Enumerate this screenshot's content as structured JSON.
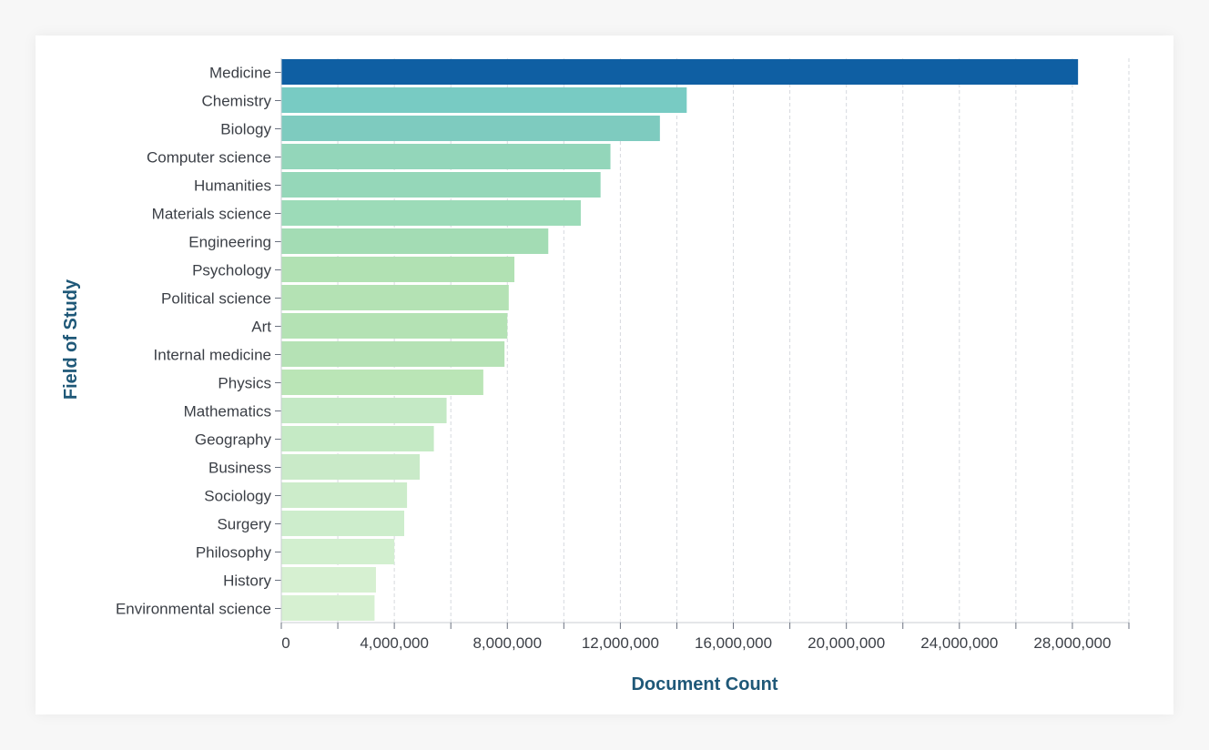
{
  "chart_data": {
    "type": "bar",
    "orientation": "horizontal",
    "xlabel": "Document Count",
    "ylabel": "Field of Study",
    "xlim": [
      0,
      30000000
    ],
    "xticks": [
      0,
      4000000,
      8000000,
      12000000,
      16000000,
      20000000,
      24000000,
      28000000
    ],
    "xtick_labels": [
      "0",
      "4,000,000",
      "8,000,000",
      "12,000,000",
      "16,000,000",
      "20,000,000",
      "24,000,000",
      "28,000,000"
    ],
    "grid": "vertical dashed",
    "categories": [
      "Medicine",
      "Chemistry",
      "Biology",
      "Computer science",
      "Humanities",
      "Materials science",
      "Engineering",
      "Psychology",
      "Political science",
      "Art",
      "Internal medicine",
      "Physics",
      "Mathematics",
      "Geography",
      "Business",
      "Sociology",
      "Surgery",
      "Philosophy",
      "History",
      "Environmental science"
    ],
    "values": [
      28200000,
      14350000,
      13400000,
      11650000,
      11300000,
      10600000,
      9450000,
      8250000,
      8050000,
      8000000,
      7900000,
      7150000,
      5850000,
      5400000,
      4900000,
      4450000,
      4350000,
      4000000,
      3350000,
      3300000
    ],
    "colors": [
      "#0f5fa3",
      "#78cbc3",
      "#7ecbbf",
      "#93d6ba",
      "#95d7b9",
      "#9cdbb8",
      "#a3dcb4",
      "#b1e1b3",
      "#b4e2b4",
      "#b4e2b4",
      "#b5e2b5",
      "#bae5b6",
      "#c4e9c5",
      "#c5eac5",
      "#c9eac8",
      "#ccecca",
      "#cdedcc",
      "#d2efcf",
      "#d6f0d1",
      "#d6f0d1"
    ]
  }
}
